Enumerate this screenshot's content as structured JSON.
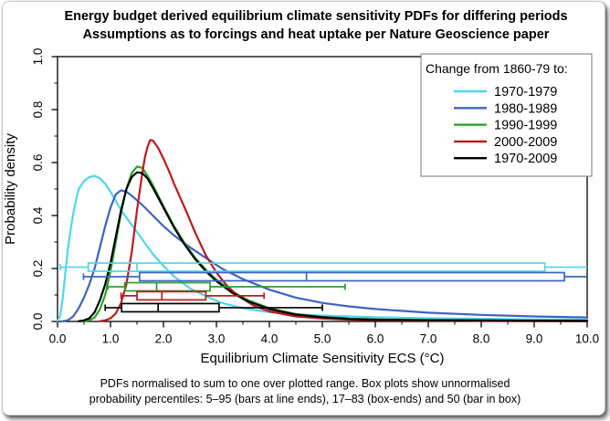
{
  "chart_data": {
    "type": "line",
    "title": "Energy budget derived equilibrium climate sensitivity PDFs for differing periods",
    "subtitle": "Assumptions as to forcings and heat uptake per Nature Geoscience paper",
    "xlabel": "Equilibrium Climate Sensitivity ECS (°C)",
    "ylabel": "Probability density",
    "xlim": [
      0,
      10
    ],
    "ylim": [
      0,
      1
    ],
    "grid": false,
    "x_major_ticks": [
      0,
      1,
      2,
      3,
      4,
      5,
      6,
      7,
      8,
      9,
      10
    ],
    "x_tick_labels": [
      "0.0",
      "1.0",
      "2.0",
      "3.0",
      "4.0",
      "5.0",
      "6.0",
      "7.0",
      "8.0",
      "9.0",
      "10.0"
    ],
    "x_minor_ticks": [
      0.5,
      1.5,
      2.5,
      3.5,
      4.5,
      5.5,
      6.5,
      7.5,
      8.5,
      9.5
    ],
    "y_major_ticks": [
      0,
      0.2,
      0.4,
      0.6,
      0.8,
      1.0
    ],
    "y_tick_labels": [
      "0.0",
      "0.2",
      "0.4",
      "0.6",
      "0.8",
      "1.0"
    ],
    "y_minor_ticks": [
      0.1,
      0.3,
      0.5,
      0.7,
      0.9
    ],
    "legend": {
      "position": "top-right",
      "title": "Change from 1860-79 to:",
      "items": [
        {
          "label": "1970-1979",
          "color": "#4ed7e8"
        },
        {
          "label": "1980-1989",
          "color": "#3e62c4"
        },
        {
          "label": "1990-1999",
          "color": "#27a327"
        },
        {
          "label": "2000-2009",
          "color": "#be1a1a"
        },
        {
          "label": "1970-2009",
          "color": "#000000"
        }
      ]
    },
    "series": [
      {
        "name": "1970-1979",
        "color": "#4ed7e8",
        "points": [
          [
            0,
            0.002
          ],
          [
            0.05,
            0.02
          ],
          [
            0.1,
            0.09
          ],
          [
            0.15,
            0.19
          ],
          [
            0.2,
            0.28
          ],
          [
            0.25,
            0.35
          ],
          [
            0.3,
            0.41
          ],
          [
            0.35,
            0.46
          ],
          [
            0.4,
            0.5
          ],
          [
            0.5,
            0.53
          ],
          [
            0.6,
            0.545
          ],
          [
            0.7,
            0.55
          ],
          [
            0.8,
            0.54
          ],
          [
            0.9,
            0.52
          ],
          [
            1.0,
            0.49
          ],
          [
            1.1,
            0.455
          ],
          [
            1.2,
            0.42
          ],
          [
            1.4,
            0.365
          ],
          [
            1.6,
            0.31
          ],
          [
            1.8,
            0.255
          ],
          [
            2.0,
            0.21
          ],
          [
            2.2,
            0.17
          ],
          [
            2.5,
            0.125
          ],
          [
            2.8,
            0.095
          ],
          [
            3.1,
            0.07
          ],
          [
            3.5,
            0.05
          ],
          [
            4.0,
            0.035
          ],
          [
            4.5,
            0.027
          ],
          [
            5.0,
            0.022
          ],
          [
            6.0,
            0.016
          ],
          [
            7.0,
            0.012
          ],
          [
            8.0,
            0.01
          ],
          [
            9.0,
            0.008
          ],
          [
            10,
            0.007
          ]
        ]
      },
      {
        "name": "1980-1989",
        "color": "#3e62c4",
        "points": [
          [
            0.1,
            0.001
          ],
          [
            0.2,
            0.005
          ],
          [
            0.3,
            0.02
          ],
          [
            0.4,
            0.05
          ],
          [
            0.5,
            0.09
          ],
          [
            0.6,
            0.14
          ],
          [
            0.7,
            0.2
          ],
          [
            0.8,
            0.28
          ],
          [
            0.9,
            0.36
          ],
          [
            1.0,
            0.43
          ],
          [
            1.1,
            0.48
          ],
          [
            1.2,
            0.495
          ],
          [
            1.3,
            0.49
          ],
          [
            1.4,
            0.475
          ],
          [
            1.6,
            0.44
          ],
          [
            1.8,
            0.4
          ],
          [
            2.0,
            0.36
          ],
          [
            2.2,
            0.325
          ],
          [
            2.5,
            0.28
          ],
          [
            2.8,
            0.24
          ],
          [
            3.1,
            0.2
          ],
          [
            3.5,
            0.16
          ],
          [
            4.0,
            0.12
          ],
          [
            4.5,
            0.09
          ],
          [
            5.0,
            0.07
          ],
          [
            5.5,
            0.057
          ],
          [
            6.0,
            0.047
          ],
          [
            7.0,
            0.033
          ],
          [
            8.0,
            0.025
          ],
          [
            9.0,
            0.019
          ],
          [
            10,
            0.015
          ]
        ]
      },
      {
        "name": "1990-1999",
        "color": "#27a327",
        "points": [
          [
            0.5,
            0.001
          ],
          [
            0.6,
            0.004
          ],
          [
            0.7,
            0.015
          ],
          [
            0.8,
            0.045
          ],
          [
            0.9,
            0.1
          ],
          [
            1.0,
            0.19
          ],
          [
            1.1,
            0.3
          ],
          [
            1.2,
            0.41
          ],
          [
            1.3,
            0.5
          ],
          [
            1.4,
            0.56
          ],
          [
            1.5,
            0.585
          ],
          [
            1.6,
            0.58
          ],
          [
            1.7,
            0.55
          ],
          [
            1.8,
            0.515
          ],
          [
            1.9,
            0.475
          ],
          [
            2.0,
            0.435
          ],
          [
            2.2,
            0.36
          ],
          [
            2.4,
            0.295
          ],
          [
            2.6,
            0.24
          ],
          [
            2.8,
            0.195
          ],
          [
            3.0,
            0.158
          ],
          [
            3.3,
            0.113
          ],
          [
            3.6,
            0.08
          ],
          [
            4.0,
            0.05
          ],
          [
            4.5,
            0.028
          ],
          [
            5.0,
            0.017
          ],
          [
            5.5,
            0.011
          ],
          [
            6.0,
            0.008
          ],
          [
            7.0,
            0.005
          ],
          [
            8.0,
            0.004
          ],
          [
            9.0,
            0.003
          ],
          [
            10,
            0.003
          ]
        ]
      },
      {
        "name": "2000-2009",
        "color": "#be1a1a",
        "points": [
          [
            0.8,
            0.001
          ],
          [
            0.9,
            0.004
          ],
          [
            1.0,
            0.012
          ],
          [
            1.1,
            0.03
          ],
          [
            1.2,
            0.07
          ],
          [
            1.3,
            0.14
          ],
          [
            1.4,
            0.26
          ],
          [
            1.5,
            0.42
          ],
          [
            1.6,
            0.56
          ],
          [
            1.65,
            0.62
          ],
          [
            1.7,
            0.66
          ],
          [
            1.75,
            0.685
          ],
          [
            1.8,
            0.683
          ],
          [
            1.9,
            0.655
          ],
          [
            2.0,
            0.615
          ],
          [
            2.1,
            0.57
          ],
          [
            2.2,
            0.52
          ],
          [
            2.4,
            0.43
          ],
          [
            2.6,
            0.335
          ],
          [
            2.8,
            0.25
          ],
          [
            3.0,
            0.185
          ],
          [
            3.2,
            0.135
          ],
          [
            3.4,
            0.098
          ],
          [
            3.7,
            0.06
          ],
          [
            4.0,
            0.038
          ],
          [
            4.5,
            0.019
          ],
          [
            5.0,
            0.011
          ],
          [
            5.5,
            0.007
          ],
          [
            6.0,
            0.005
          ],
          [
            7.0,
            0.003
          ],
          [
            8.0,
            0.002
          ],
          [
            9.0,
            0.0015
          ],
          [
            10,
            0.001
          ]
        ]
      },
      {
        "name": "1970-2009",
        "color": "#000000",
        "points": [
          [
            0.4,
            0.001
          ],
          [
            0.5,
            0.004
          ],
          [
            0.6,
            0.012
          ],
          [
            0.7,
            0.035
          ],
          [
            0.8,
            0.08
          ],
          [
            0.9,
            0.14
          ],
          [
            1.0,
            0.22
          ],
          [
            1.1,
            0.32
          ],
          [
            1.2,
            0.42
          ],
          [
            1.3,
            0.5
          ],
          [
            1.4,
            0.545
          ],
          [
            1.5,
            0.563
          ],
          [
            1.6,
            0.56
          ],
          [
            1.7,
            0.54
          ],
          [
            1.8,
            0.505
          ],
          [
            1.9,
            0.468
          ],
          [
            2.0,
            0.43
          ],
          [
            2.2,
            0.355
          ],
          [
            2.4,
            0.29
          ],
          [
            2.6,
            0.235
          ],
          [
            2.8,
            0.19
          ],
          [
            3.0,
            0.152
          ],
          [
            3.3,
            0.108
          ],
          [
            3.6,
            0.076
          ],
          [
            4.0,
            0.047
          ],
          [
            4.5,
            0.026
          ],
          [
            5.0,
            0.016
          ],
          [
            5.5,
            0.01
          ],
          [
            6.0,
            0.007
          ],
          [
            7.0,
            0.005
          ],
          [
            8.0,
            0.004
          ],
          [
            9.0,
            0.003
          ],
          [
            10,
            0.002
          ]
        ]
      }
    ],
    "boxplots": [
      {
        "name": "1970-1979",
        "color": "#4ed7e8",
        "level": 0.205,
        "p5": 0.05,
        "p17": 0.58,
        "p50": 1.5,
        "p83": 9.2,
        "p95": 10.0,
        "p5_cap": true,
        "p95_cap": false
      },
      {
        "name": "1980-1989",
        "color": "#3e62c4",
        "level": 0.169,
        "p5": 0.49,
        "p17": 1.55,
        "p50": 4.7,
        "p83": 9.57,
        "p95": 10.0,
        "p5_cap": true,
        "p95_cap": false
      },
      {
        "name": "1990-1999",
        "color": "#27a327",
        "level": 0.131,
        "p5": 0.95,
        "p17": 1.27,
        "p50": 1.87,
        "p83": 2.88,
        "p95": 5.43,
        "p5_cap": true,
        "p95_cap": true
      },
      {
        "name": "2000-2009",
        "color": "#be1a1a",
        "level": 0.097,
        "p5": 1.2,
        "p17": 1.5,
        "p50": 1.97,
        "p83": 2.8,
        "p95": 3.9,
        "p5_cap": true,
        "p95_cap": true
      },
      {
        "name": "1970-2009",
        "color": "#000000",
        "level": 0.052,
        "p5": 0.9,
        "p17": 1.21,
        "p50": 1.9,
        "p83": 3.05,
        "p95": 5.0,
        "p5_cap": true,
        "p95_cap": true
      }
    ],
    "footnote_line1": "PDFs normalised to sum to one over plotted range. Box plots show unnormalised",
    "footnote_line2": "probability percentiles: 5–95 (bars at line ends), 17–83 (box-ends) and 50 (bar in box)"
  }
}
